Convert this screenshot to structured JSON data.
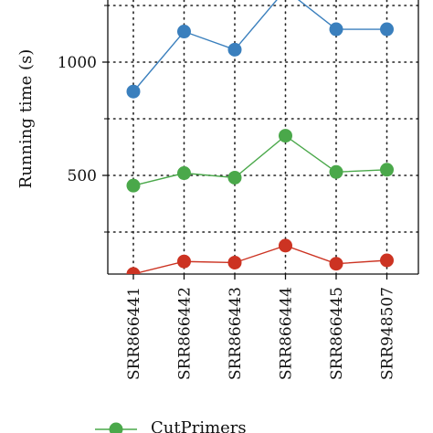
{
  "chart_data": {
    "type": "line",
    "categories": [
      "SRR866441",
      "SRR866442",
      "SRR866443",
      "SRR866444",
      "SRR866445",
      "SRR948507"
    ],
    "ylabel": "Running time (s)",
    "xlabel": "",
    "ylim": [
      0,
      1300
    ],
    "yticks": [
      500,
      1000
    ],
    "grid": true,
    "legend_position": "bottom",
    "series": [
      {
        "name": "",
        "color": "#3a7fbd",
        "values": [
          870,
          1135,
          1055,
          1320,
          1145,
          1145
        ]
      },
      {
        "name": "CutPrimers",
        "color": "#4aa84a",
        "values": [
          455,
          510,
          490,
          675,
          515,
          525
        ]
      },
      {
        "name": "",
        "color": "#cc3322",
        "values": [
          65,
          120,
          115,
          190,
          110,
          125
        ]
      }
    ]
  }
}
